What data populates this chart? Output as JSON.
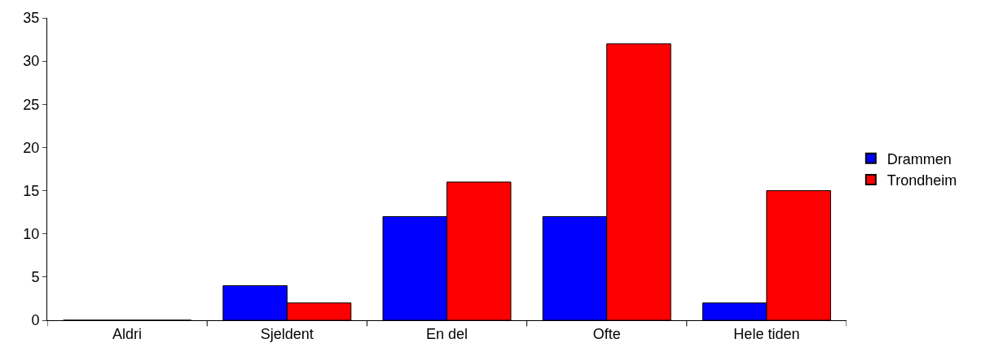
{
  "chart_data": {
    "type": "bar",
    "categories": [
      "Aldri",
      "Sjeldent",
      "En del",
      "Ofte",
      "Hele tiden"
    ],
    "series": [
      {
        "name": "Drammen",
        "color": "#0000ff",
        "values": [
          0,
          4,
          12,
          12,
          2
        ]
      },
      {
        "name": "Trondheim",
        "color": "#ff0000",
        "values": [
          0,
          2,
          16,
          32,
          15
        ]
      }
    ],
    "ylim": [
      0,
      35
    ],
    "yticks": [
      0,
      5,
      10,
      15,
      20,
      25,
      30,
      35
    ],
    "legend": "right"
  }
}
